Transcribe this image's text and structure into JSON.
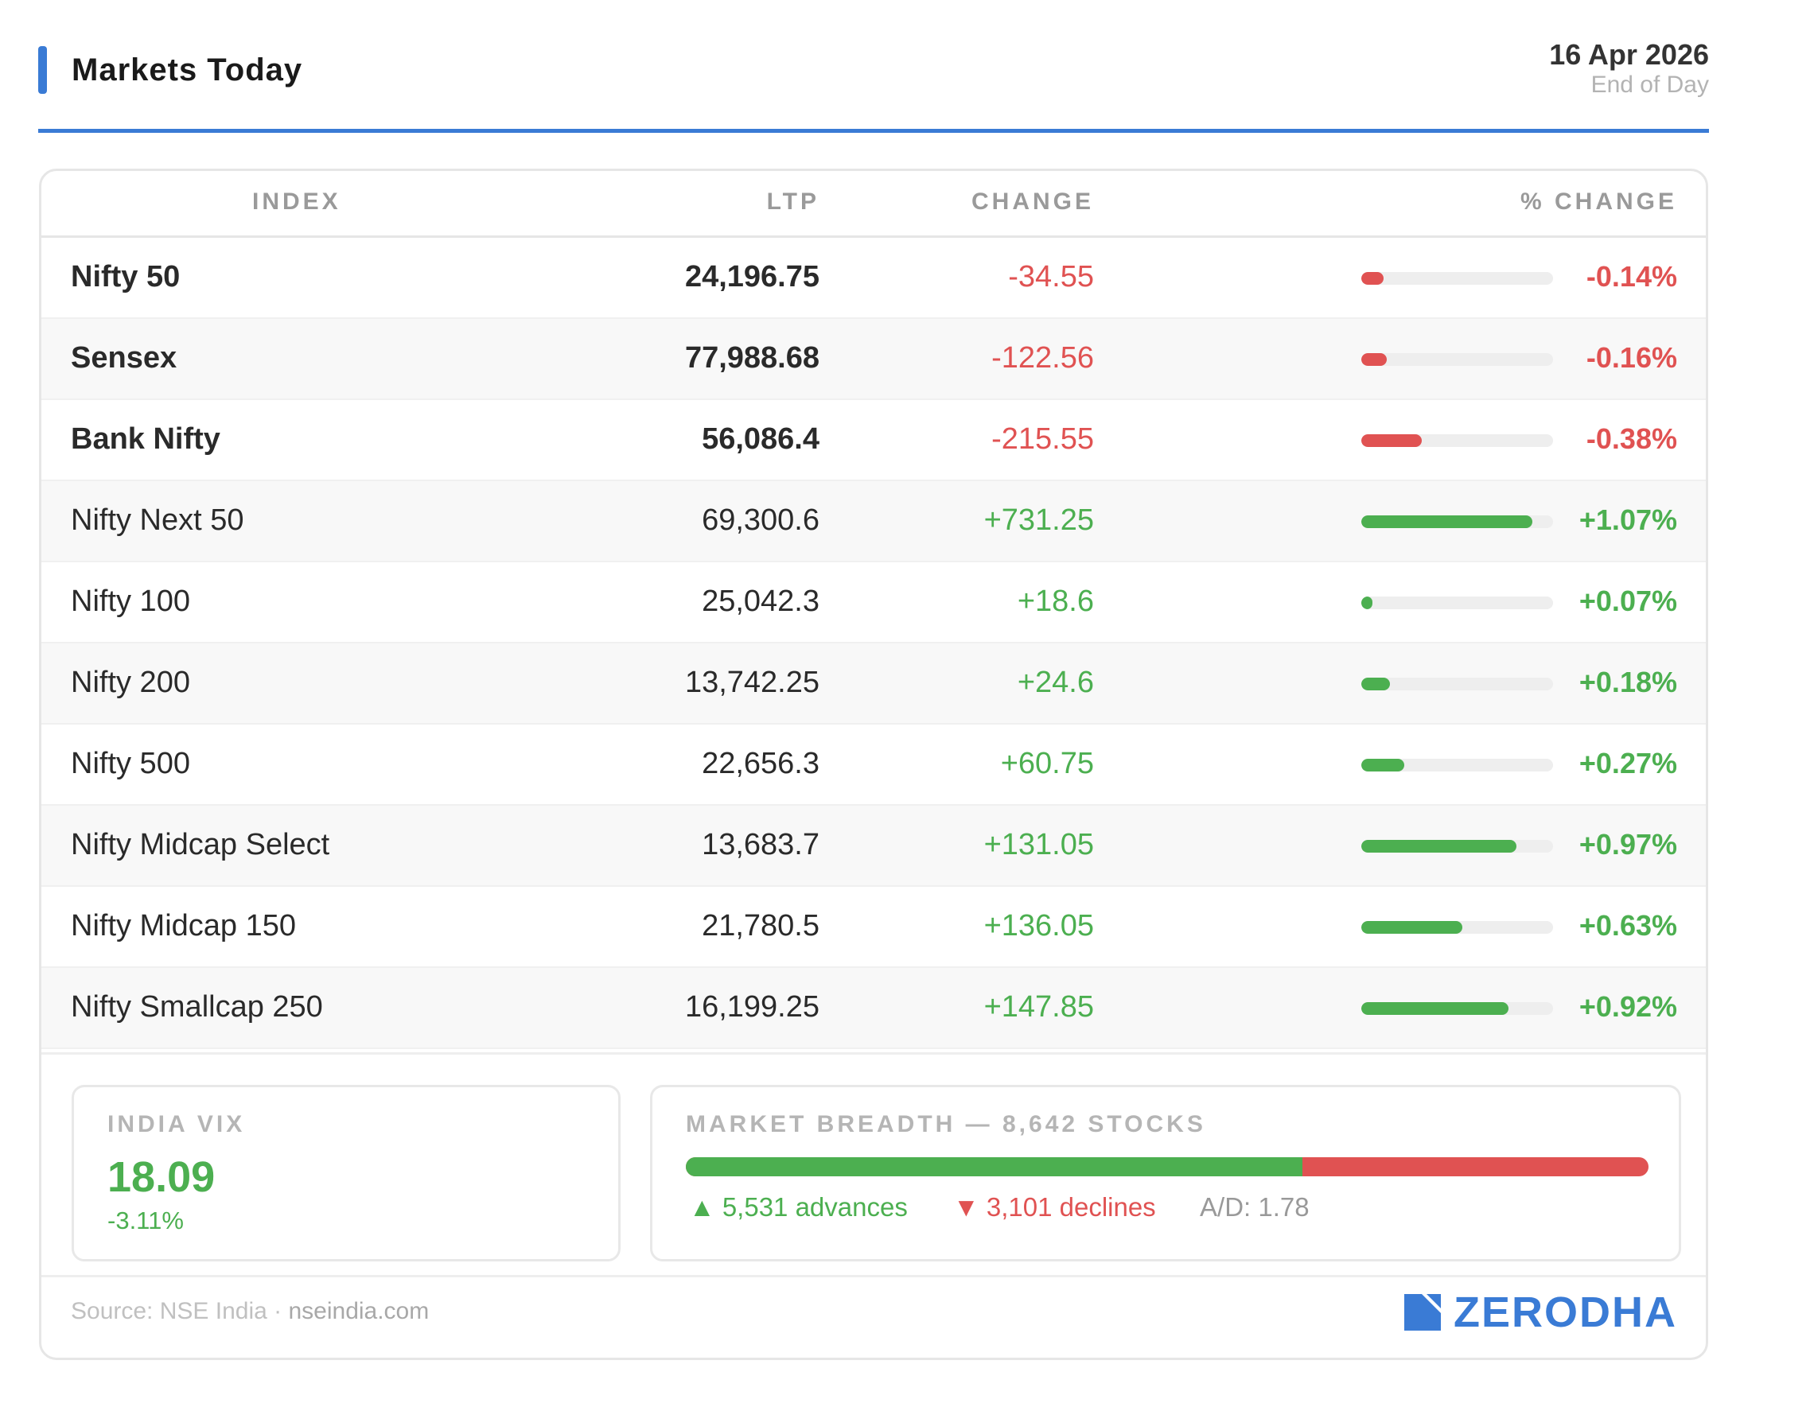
{
  "header": {
    "title": "Markets Today",
    "date": "16 Apr 2026",
    "subtitle": "End of Day"
  },
  "table": {
    "columns": [
      "INDEX",
      "LTP",
      "CHANGE",
      "% CHANGE"
    ],
    "rows": [
      {
        "name": "Nifty 50",
        "ltp": "24,196.75",
        "change": "-34.55",
        "pct": "-0.14%",
        "pct_value": -0.14,
        "major": true
      },
      {
        "name": "Sensex",
        "ltp": "77,988.68",
        "change": "-122.56",
        "pct": "-0.16%",
        "pct_value": -0.16,
        "major": true
      },
      {
        "name": "Bank Nifty",
        "ltp": "56,086.4",
        "change": "-215.55",
        "pct": "-0.38%",
        "pct_value": -0.38,
        "major": true
      },
      {
        "name": "Nifty Next 50",
        "ltp": "69,300.6",
        "change": "+731.25",
        "pct": "+1.07%",
        "pct_value": 1.07,
        "major": false
      },
      {
        "name": "Nifty 100",
        "ltp": "25,042.3",
        "change": "+18.6",
        "pct": "+0.07%",
        "pct_value": 0.07,
        "major": false
      },
      {
        "name": "Nifty 200",
        "ltp": "13,742.25",
        "change": "+24.6",
        "pct": "+0.18%",
        "pct_value": 0.18,
        "major": false
      },
      {
        "name": "Nifty 500",
        "ltp": "22,656.3",
        "change": "+60.75",
        "pct": "+0.27%",
        "pct_value": 0.27,
        "major": false
      },
      {
        "name": "Nifty Midcap Select",
        "ltp": "13,683.7",
        "change": "+131.05",
        "pct": "+0.97%",
        "pct_value": 0.97,
        "major": false
      },
      {
        "name": "Nifty Midcap 150",
        "ltp": "21,780.5",
        "change": "+136.05",
        "pct": "+0.63%",
        "pct_value": 0.63,
        "major": false
      },
      {
        "name": "Nifty Smallcap 250",
        "ltp": "16,199.25",
        "change": "+147.85",
        "pct": "+0.92%",
        "pct_value": 0.92,
        "major": false
      }
    ]
  },
  "vix": {
    "label": "INDIA VIX",
    "value": "18.09",
    "change": "-3.11%"
  },
  "breadth": {
    "label": "MARKET BREADTH — 8,642 STOCKS",
    "advances": 5531,
    "declines": 3101,
    "advances_text": "▲ 5,531 advances",
    "declines_text": "▼ 3,101 declines",
    "ad_text": "A/D: 1.78"
  },
  "footer": {
    "source": "Source: NSE India",
    "separator": " · ",
    "site": "nseindia.com",
    "brand": "ZERODHA"
  },
  "colors": {
    "accent": "#3a7bd5",
    "positive": "#4caf50",
    "negative": "#e05252"
  }
}
